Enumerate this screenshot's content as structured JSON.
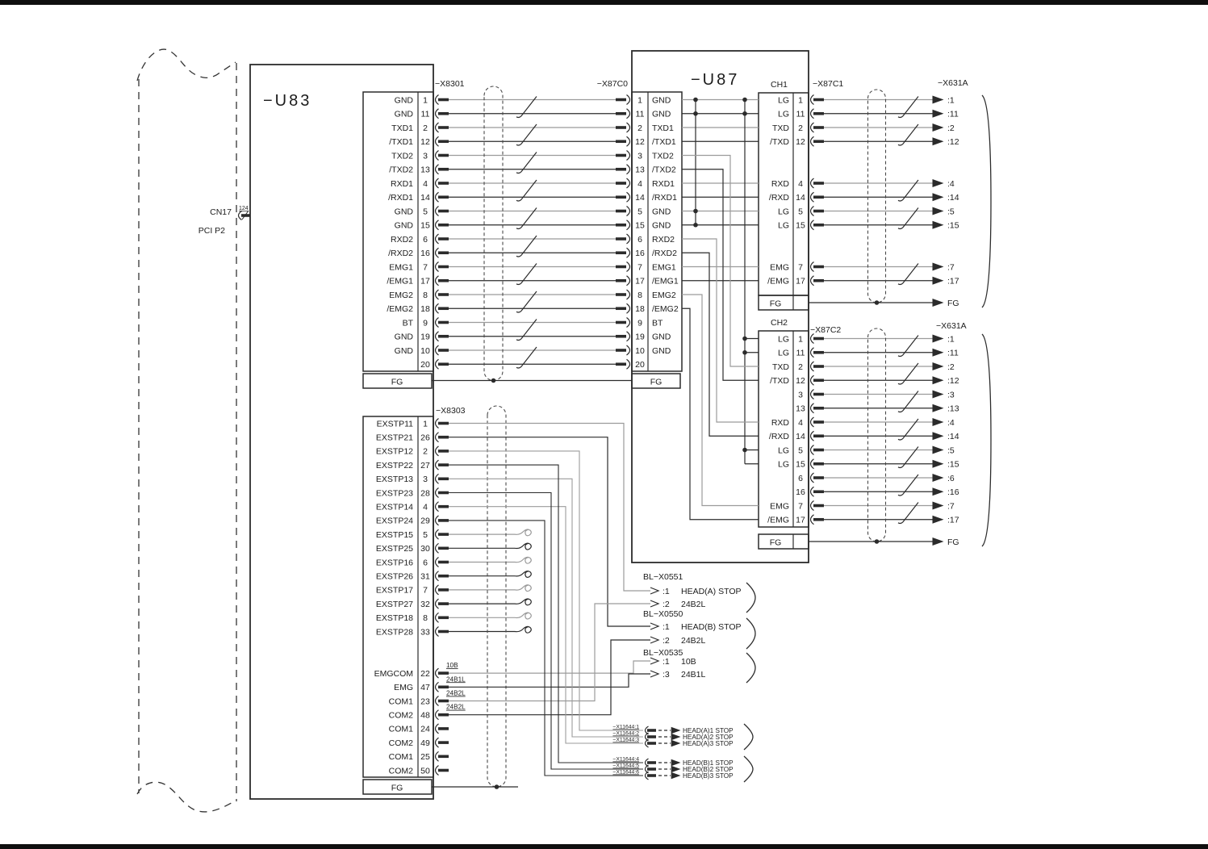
{
  "colors": {
    "line": "#2b2b2b",
    "wireGray": "#9b9b9b",
    "wireBlack": "#2b2b2b",
    "text": "#1c1c1c",
    "shield": "#4a4a4a",
    "border": "#0f0f0f"
  },
  "boundary": {
    "cn17": "CN17",
    "pci": "PCI P2",
    "pin": "124"
  },
  "u83": {
    "label": "−U83",
    "x8301": {
      "label": "−X8301",
      "fg": "FG",
      "pins": [
        [
          "GND",
          "1"
        ],
        [
          "GND",
          "11"
        ],
        [
          "TXD1",
          "2"
        ],
        [
          "/TXD1",
          "12"
        ],
        [
          "TXD2",
          "3"
        ],
        [
          "/TXD2",
          "13"
        ],
        [
          "RXD1",
          "4"
        ],
        [
          "/RXD1",
          "14"
        ],
        [
          "GND",
          "5"
        ],
        [
          "GND",
          "15"
        ],
        [
          "RXD2",
          "6"
        ],
        [
          "/RXD2",
          "16"
        ],
        [
          "EMG1",
          "7"
        ],
        [
          "/EMG1",
          "17"
        ],
        [
          "EMG2",
          "8"
        ],
        [
          "/EMG2",
          "18"
        ],
        [
          "BT",
          "9"
        ],
        [
          "GND",
          "19"
        ],
        [
          "GND",
          "10"
        ],
        [
          "",
          "20"
        ]
      ]
    },
    "x8303": {
      "label": "−X8303",
      "fg": "FG",
      "exstpPins": [
        [
          "EXSTP11",
          "1"
        ],
        [
          "EXSTP21",
          "26"
        ],
        [
          "EXSTP12",
          "2"
        ],
        [
          "EXSTP22",
          "27"
        ],
        [
          "EXSTP13",
          "3"
        ],
        [
          "EXSTP23",
          "28"
        ],
        [
          "EXSTP14",
          "4"
        ],
        [
          "EXSTP24",
          "29"
        ],
        [
          "EXSTP15",
          "5"
        ],
        [
          "EXSTP25",
          "30"
        ],
        [
          "EXSTP16",
          "6"
        ],
        [
          "EXSTP26",
          "31"
        ],
        [
          "EXSTP17",
          "7"
        ],
        [
          "EXSTP27",
          "32"
        ],
        [
          "EXSTP18",
          "8"
        ],
        [
          "EXSTP28",
          "33"
        ]
      ],
      "comPins": [
        [
          "EMGCOM",
          "22",
          "10B"
        ],
        [
          "EMG",
          "47",
          "24B1L"
        ],
        [
          "COM1",
          "23",
          "24B2L"
        ],
        [
          "COM2",
          "48",
          "24B2L"
        ],
        [
          "COM1",
          "24",
          ""
        ],
        [
          "COM2",
          "49",
          ""
        ],
        [
          "COM1",
          "25",
          ""
        ],
        [
          "COM2",
          "50",
          ""
        ]
      ]
    }
  },
  "u87": {
    "label": "−U87",
    "x87c0": {
      "label": "−X87C0",
      "fg": "FG",
      "pins": [
        [
          "GND",
          "1"
        ],
        [
          "GND",
          "11"
        ],
        [
          "TXD1",
          "2"
        ],
        [
          "/TXD1",
          "12"
        ],
        [
          "TXD2",
          "3"
        ],
        [
          "/TXD2",
          "13"
        ],
        [
          "RXD1",
          "4"
        ],
        [
          "/RXD1",
          "14"
        ],
        [
          "GND",
          "5"
        ],
        [
          "GND",
          "15"
        ],
        [
          "RXD2",
          "6"
        ],
        [
          "/RXD2",
          "16"
        ],
        [
          "EMG1",
          "7"
        ],
        [
          "/EMG1",
          "17"
        ],
        [
          "EMG2",
          "8"
        ],
        [
          "/EMG2",
          "18"
        ],
        [
          "BT",
          "9"
        ],
        [
          "GND",
          "19"
        ],
        [
          "GND",
          "10"
        ],
        [
          "",
          "20"
        ]
      ]
    },
    "ch1": {
      "label": "CH1",
      "fg": "FG",
      "pins": [
        [
          "LG",
          "1",
          0
        ],
        [
          "LG",
          "11",
          1
        ],
        [
          "TXD",
          "2",
          2
        ],
        [
          "/TXD",
          "12",
          3
        ],
        [
          "RXD",
          "4",
          6
        ],
        [
          "/RXD",
          "14",
          7
        ],
        [
          "LG",
          "5",
          8
        ],
        [
          "LG",
          "15",
          9
        ],
        [
          "EMG",
          "7",
          12
        ],
        [
          "/EMG",
          "17",
          13
        ]
      ]
    },
    "ch2": {
      "label": "CH2",
      "fg": "FG",
      "pins": [
        [
          "LG",
          "1",
          0
        ],
        [
          "LG",
          "11",
          1
        ],
        [
          "TXD",
          "2",
          2
        ],
        [
          "/TXD",
          "12",
          3
        ],
        [
          "",
          "3",
          4
        ],
        [
          "",
          "13",
          5
        ],
        [
          "RXD",
          "4",
          6
        ],
        [
          "/RXD",
          "14",
          7
        ],
        [
          "LG",
          "5",
          8
        ],
        [
          "LG",
          "15",
          9
        ],
        [
          "",
          "6",
          10
        ],
        [
          "",
          "16",
          11
        ],
        [
          "EMG",
          "7",
          12
        ],
        [
          "/EMG",
          "17",
          13
        ]
      ]
    }
  },
  "cable1": {
    "label": "−X87C1",
    "dest": "−X631A",
    "fgLabel": "FG",
    "targets": [
      [
        ":1",
        0
      ],
      [
        ":11",
        1
      ],
      [
        ":2",
        2
      ],
      [
        ":12",
        3
      ],
      [
        ":4",
        6
      ],
      [
        ":14",
        7
      ],
      [
        ":5",
        8
      ],
      [
        ":15",
        9
      ],
      [
        ":7",
        12
      ],
      [
        ":17",
        13
      ]
    ]
  },
  "cable2": {
    "label": "−X87C2",
    "dest": "−X631A",
    "fgLabel": "FG",
    "targets": [
      [
        ":1",
        0
      ],
      [
        ":11",
        1
      ],
      [
        ":2",
        2
      ],
      [
        ":12",
        3
      ],
      [
        ":3",
        4
      ],
      [
        ":13",
        5
      ],
      [
        ":4",
        6
      ],
      [
        ":14",
        7
      ],
      [
        ":5",
        8
      ],
      [
        ":15",
        9
      ],
      [
        ":6",
        10
      ],
      [
        ":16",
        11
      ],
      [
        ":7",
        12
      ],
      [
        ":17",
        13
      ]
    ]
  },
  "bl": [
    {
      "label": "BL−X0551",
      "rows": [
        [
          ":1",
          "HEAD(A) STOP"
        ],
        [
          ":2",
          "24B2L"
        ]
      ]
    },
    {
      "label": "BL−X0550",
      "rows": [
        [
          ":1",
          "HEAD(B) STOP"
        ],
        [
          ":2",
          "24B2L"
        ]
      ]
    },
    {
      "label": "BL−X0535",
      "rows": [
        [
          ":1",
          "10B"
        ],
        [
          ":3",
          "24B1L"
        ]
      ]
    }
  ],
  "x11644": [
    [
      [
        "−X11644:1",
        "HEAD(A)1 STOP"
      ],
      [
        "−X11644:2",
        "HEAD(A)2 STOP"
      ],
      [
        "−X11644:3",
        "HEAD(A)3 STOP"
      ]
    ],
    [
      [
        "−X11644:4",
        "HEAD(B)1 STOP"
      ],
      [
        "−X11644:5",
        "HEAD(B)2 STOP"
      ],
      [
        "−X11644:6",
        "HEAD(B)3 STOP"
      ]
    ]
  ]
}
